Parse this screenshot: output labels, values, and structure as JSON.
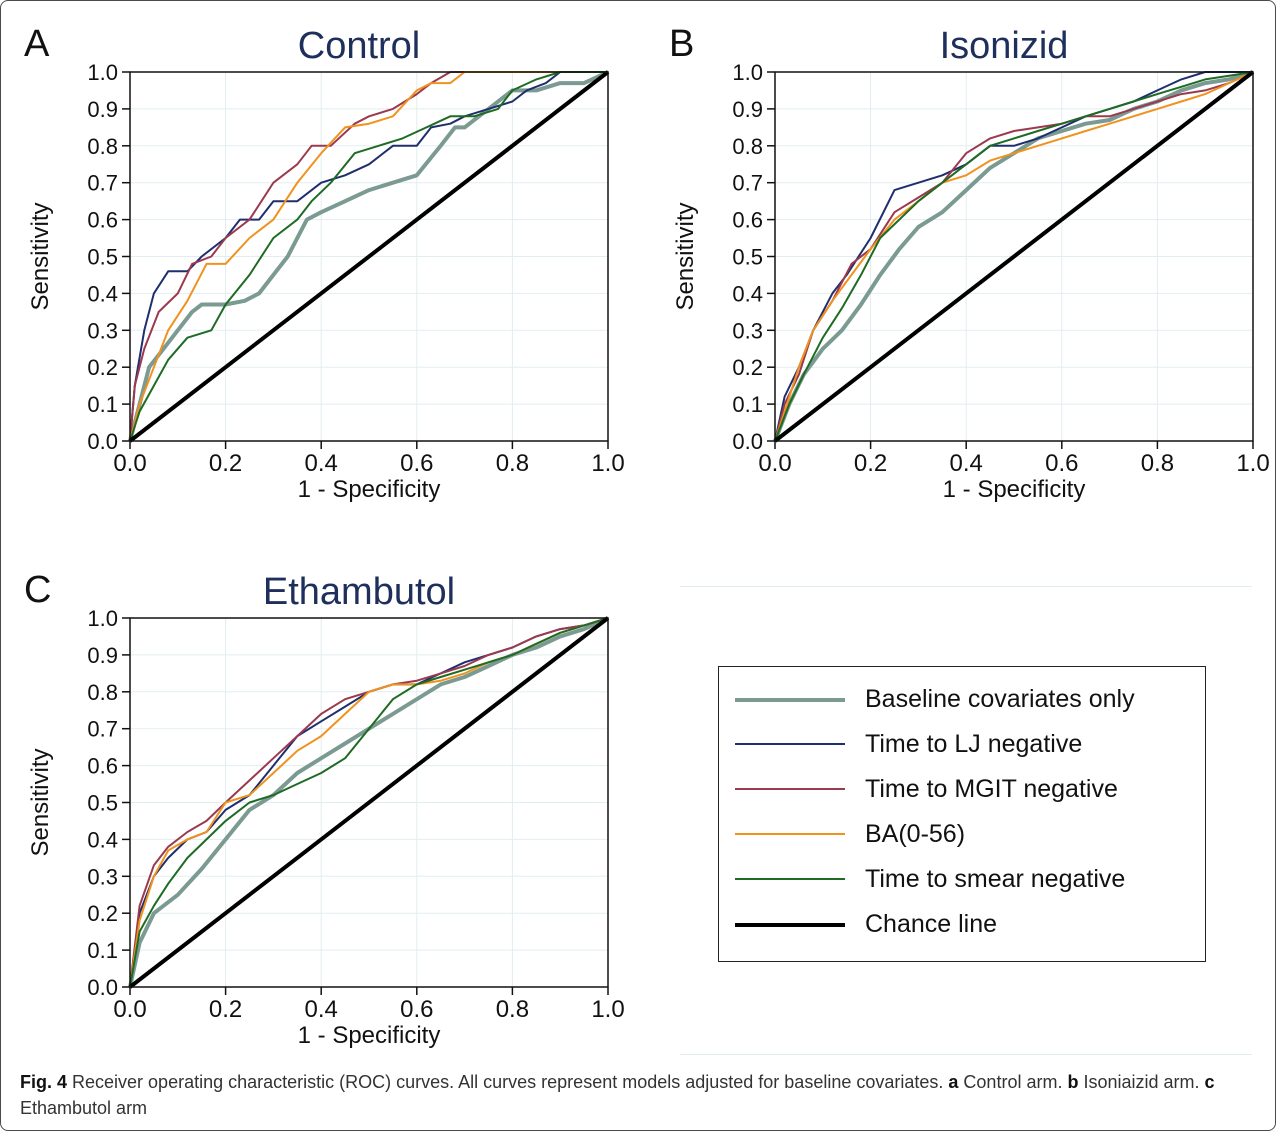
{
  "figure": {
    "caption": {
      "label": "Fig. 4",
      "text_1": " Receiver operating characteristic (ROC) curves. All curves represent models adjusted for baseline covariates. ",
      "a_label": "a",
      "a_text": " Control arm. ",
      "b_label": "b",
      "b_text": " Isoniaizid arm. ",
      "c_label": "c",
      "c_text": " Ethambutol arm"
    }
  },
  "legend": {
    "items": [
      {
        "label": "Baseline covariates only",
        "color": "#7a9a92",
        "width": 4
      },
      {
        "label": "Time to LJ negative",
        "color": "#1f2f6e",
        "width": 2
      },
      {
        "label": "Time to MGIT negative",
        "color": "#9b3a4f",
        "width": 2
      },
      {
        "label": "BA(0-56)",
        "color": "#f0921e",
        "width": 2
      },
      {
        "label": "Time to smear negative",
        "color": "#1e6b23",
        "width": 2
      },
      {
        "label": "Chance line",
        "color": "#000000",
        "width": 4
      }
    ]
  },
  "chart_data": [
    {
      "panel_letter": "A",
      "type": "line",
      "title": "Control",
      "xlabel": "1 - Specificity",
      "ylabel": "Sensitivity",
      "xlim": [
        0,
        1
      ],
      "ylim": [
        0,
        1
      ],
      "xticks": [
        "0.0",
        "0.2",
        "0.4",
        "0.6",
        "0.8",
        "1.0"
      ],
      "yticks": [
        "0.0",
        "0.1",
        "0.2",
        "0.3",
        "0.4",
        "0.5",
        "0.6",
        "0.7",
        "0.8",
        "0.9",
        "1.0"
      ],
      "grid": true,
      "series": [
        {
          "name": "Baseline covariates only",
          "color": "#7a9a92",
          "x": [
            0,
            0.02,
            0.04,
            0.07,
            0.1,
            0.13,
            0.15,
            0.2,
            0.24,
            0.27,
            0.3,
            0.33,
            0.35,
            0.37,
            0.4,
            0.45,
            0.5,
            0.55,
            0.6,
            0.65,
            0.68,
            0.7,
            0.75,
            0.8,
            0.85,
            0.9,
            0.95,
            1
          ],
          "y": [
            0,
            0.1,
            0.2,
            0.25,
            0.3,
            0.35,
            0.37,
            0.37,
            0.38,
            0.4,
            0.45,
            0.5,
            0.55,
            0.6,
            0.62,
            0.65,
            0.68,
            0.7,
            0.72,
            0.8,
            0.85,
            0.85,
            0.9,
            0.95,
            0.95,
            0.97,
            0.97,
            1
          ]
        },
        {
          "name": "Time to LJ negative",
          "color": "#1f2f6e",
          "x": [
            0,
            0.01,
            0.03,
            0.05,
            0.08,
            0.12,
            0.15,
            0.2,
            0.23,
            0.27,
            0.3,
            0.35,
            0.4,
            0.45,
            0.5,
            0.55,
            0.6,
            0.63,
            0.67,
            0.7,
            0.75,
            0.8,
            0.83,
            0.87,
            0.9,
            0.95,
            1
          ],
          "y": [
            0,
            0.15,
            0.3,
            0.4,
            0.46,
            0.46,
            0.5,
            0.55,
            0.6,
            0.6,
            0.65,
            0.65,
            0.7,
            0.72,
            0.75,
            0.8,
            0.8,
            0.85,
            0.86,
            0.88,
            0.9,
            0.92,
            0.95,
            0.97,
            1,
            1,
            1
          ]
        },
        {
          "name": "Time to MGIT negative",
          "color": "#9b3a4f",
          "x": [
            0,
            0.01,
            0.03,
            0.06,
            0.1,
            0.13,
            0.17,
            0.2,
            0.25,
            0.3,
            0.35,
            0.38,
            0.42,
            0.47,
            0.5,
            0.55,
            0.6,
            0.63,
            0.67,
            0.7,
            0.75,
            0.8,
            0.85,
            0.9,
            0.95,
            1
          ],
          "y": [
            0,
            0.15,
            0.25,
            0.35,
            0.4,
            0.48,
            0.5,
            0.55,
            0.6,
            0.7,
            0.75,
            0.8,
            0.8,
            0.86,
            0.88,
            0.9,
            0.94,
            0.97,
            1,
            1,
            1,
            1,
            1,
            1,
            1,
            1
          ]
        },
        {
          "name": "BA(0-56)",
          "color": "#f0921e",
          "x": [
            0,
            0.02,
            0.05,
            0.08,
            0.12,
            0.16,
            0.2,
            0.25,
            0.3,
            0.35,
            0.4,
            0.45,
            0.5,
            0.55,
            0.6,
            0.63,
            0.67,
            0.7,
            0.75,
            0.8,
            0.85,
            0.9,
            0.95,
            1
          ],
          "y": [
            0,
            0.1,
            0.2,
            0.3,
            0.38,
            0.48,
            0.48,
            0.55,
            0.6,
            0.7,
            0.78,
            0.85,
            0.86,
            0.88,
            0.95,
            0.97,
            0.97,
            1,
            1,
            1,
            1,
            1,
            1,
            1
          ]
        },
        {
          "name": "Time to smear negative",
          "color": "#1e6b23",
          "x": [
            0,
            0.02,
            0.05,
            0.08,
            0.12,
            0.17,
            0.2,
            0.25,
            0.3,
            0.35,
            0.38,
            0.42,
            0.47,
            0.52,
            0.57,
            0.62,
            0.67,
            0.72,
            0.77,
            0.8,
            0.85,
            0.9,
            0.95,
            1
          ],
          "y": [
            0,
            0.08,
            0.15,
            0.22,
            0.28,
            0.3,
            0.37,
            0.45,
            0.55,
            0.6,
            0.65,
            0.7,
            0.78,
            0.8,
            0.82,
            0.85,
            0.88,
            0.88,
            0.9,
            0.95,
            0.98,
            1,
            1,
            1
          ]
        },
        {
          "name": "Chance line",
          "color": "#000000",
          "x": [
            0,
            1
          ],
          "y": [
            0,
            1
          ]
        }
      ]
    },
    {
      "panel_letter": "B",
      "type": "line",
      "title": "Isonizid",
      "xlabel": "1 - Specificity",
      "ylabel": "Sensitivity",
      "xlim": [
        0,
        1
      ],
      "ylim": [
        0,
        1
      ],
      "xticks": [
        "0.0",
        "0.2",
        "0.4",
        "0.6",
        "0.8",
        "1.0"
      ],
      "yticks": [
        "0.0",
        "0.1",
        "0.2",
        "0.3",
        "0.4",
        "0.5",
        "0.6",
        "0.7",
        "0.8",
        "0.9",
        "1.0"
      ],
      "grid": true,
      "series": [
        {
          "name": "Baseline covariates only",
          "color": "#7a9a92",
          "x": [
            0,
            0.03,
            0.06,
            0.1,
            0.14,
            0.18,
            0.22,
            0.26,
            0.3,
            0.35,
            0.4,
            0.45,
            0.5,
            0.55,
            0.6,
            0.65,
            0.7,
            0.75,
            0.8,
            0.85,
            0.9,
            0.95,
            1
          ],
          "y": [
            0,
            0.1,
            0.18,
            0.25,
            0.3,
            0.37,
            0.45,
            0.52,
            0.58,
            0.62,
            0.68,
            0.74,
            0.78,
            0.82,
            0.84,
            0.86,
            0.87,
            0.9,
            0.92,
            0.95,
            0.97,
            0.98,
            1
          ]
        },
        {
          "name": "Time to LJ negative",
          "color": "#1f2f6e",
          "x": [
            0,
            0.02,
            0.05,
            0.08,
            0.12,
            0.15,
            0.2,
            0.25,
            0.3,
            0.35,
            0.4,
            0.45,
            0.5,
            0.55,
            0.6,
            0.65,
            0.7,
            0.75,
            0.8,
            0.85,
            0.9,
            0.95,
            1
          ],
          "y": [
            0,
            0.12,
            0.2,
            0.3,
            0.4,
            0.45,
            0.55,
            0.68,
            0.7,
            0.72,
            0.75,
            0.8,
            0.8,
            0.82,
            0.85,
            0.88,
            0.9,
            0.92,
            0.95,
            0.98,
            1,
            1,
            1
          ]
        },
        {
          "name": "Time to MGIT negative",
          "color": "#9b3a4f",
          "x": [
            0,
            0.02,
            0.05,
            0.08,
            0.12,
            0.16,
            0.2,
            0.25,
            0.3,
            0.35,
            0.4,
            0.45,
            0.5,
            0.55,
            0.6,
            0.65,
            0.7,
            0.75,
            0.8,
            0.85,
            0.9,
            0.95,
            1
          ],
          "y": [
            0,
            0.1,
            0.18,
            0.3,
            0.38,
            0.48,
            0.52,
            0.62,
            0.66,
            0.7,
            0.78,
            0.82,
            0.84,
            0.85,
            0.86,
            0.88,
            0.88,
            0.9,
            0.92,
            0.94,
            0.95,
            0.97,
            1
          ]
        },
        {
          "name": "BA(0-56)",
          "color": "#f0921e",
          "x": [
            0,
            0.02,
            0.05,
            0.08,
            0.12,
            0.16,
            0.2,
            0.25,
            0.3,
            0.35,
            0.4,
            0.45,
            0.5,
            0.55,
            0.6,
            0.65,
            0.7,
            0.75,
            0.8,
            0.85,
            0.9,
            0.95,
            1
          ],
          "y": [
            0,
            0.08,
            0.2,
            0.3,
            0.38,
            0.45,
            0.52,
            0.6,
            0.65,
            0.7,
            0.72,
            0.76,
            0.78,
            0.8,
            0.82,
            0.84,
            0.86,
            0.88,
            0.9,
            0.92,
            0.94,
            0.97,
            1
          ]
        },
        {
          "name": "Time to smear negative",
          "color": "#1e6b23",
          "x": [
            0,
            0.03,
            0.06,
            0.1,
            0.14,
            0.18,
            0.22,
            0.26,
            0.3,
            0.35,
            0.4,
            0.45,
            0.5,
            0.55,
            0.6,
            0.65,
            0.7,
            0.75,
            0.8,
            0.85,
            0.9,
            0.95,
            1
          ],
          "y": [
            0,
            0.1,
            0.18,
            0.28,
            0.36,
            0.45,
            0.55,
            0.6,
            0.65,
            0.7,
            0.75,
            0.8,
            0.82,
            0.84,
            0.86,
            0.88,
            0.9,
            0.92,
            0.94,
            0.96,
            0.98,
            0.99,
            1
          ]
        },
        {
          "name": "Chance line",
          "color": "#000000",
          "x": [
            0,
            1
          ],
          "y": [
            0,
            1
          ]
        }
      ]
    },
    {
      "panel_letter": "C",
      "type": "line",
      "title": "Ethambutol",
      "xlabel": "1 - Specificity",
      "ylabel": "Sensitivity",
      "xlim": [
        0,
        1
      ],
      "ylim": [
        0,
        1
      ],
      "xticks": [
        "0.0",
        "0.2",
        "0.4",
        "0.6",
        "0.8",
        "1.0"
      ],
      "yticks": [
        "0.0",
        "0.1",
        "0.2",
        "0.3",
        "0.4",
        "0.5",
        "0.6",
        "0.7",
        "0.8",
        "0.9",
        "1.0"
      ],
      "grid": true,
      "series": [
        {
          "name": "Baseline covariates only",
          "color": "#7a9a92",
          "x": [
            0,
            0.02,
            0.05,
            0.1,
            0.15,
            0.2,
            0.25,
            0.3,
            0.35,
            0.4,
            0.45,
            0.5,
            0.55,
            0.6,
            0.65,
            0.7,
            0.75,
            0.8,
            0.85,
            0.9,
            0.95,
            1
          ],
          "y": [
            0,
            0.12,
            0.2,
            0.25,
            0.32,
            0.4,
            0.48,
            0.52,
            0.58,
            0.62,
            0.66,
            0.7,
            0.74,
            0.78,
            0.82,
            0.84,
            0.87,
            0.9,
            0.92,
            0.95,
            0.97,
            1
          ]
        },
        {
          "name": "Time to LJ negative",
          "color": "#1f2f6e",
          "x": [
            0,
            0.02,
            0.05,
            0.08,
            0.12,
            0.16,
            0.2,
            0.25,
            0.3,
            0.35,
            0.4,
            0.45,
            0.5,
            0.55,
            0.6,
            0.65,
            0.7,
            0.75,
            0.8,
            0.85,
            0.9,
            0.95,
            1
          ],
          "y": [
            0,
            0.2,
            0.3,
            0.35,
            0.4,
            0.42,
            0.48,
            0.52,
            0.6,
            0.68,
            0.72,
            0.76,
            0.8,
            0.82,
            0.82,
            0.85,
            0.88,
            0.9,
            0.92,
            0.95,
            0.97,
            0.98,
            1
          ]
        },
        {
          "name": "Time to MGIT negative",
          "color": "#9b3a4f",
          "x": [
            0,
            0.02,
            0.05,
            0.08,
            0.12,
            0.16,
            0.2,
            0.25,
            0.3,
            0.35,
            0.4,
            0.45,
            0.5,
            0.55,
            0.6,
            0.65,
            0.7,
            0.75,
            0.8,
            0.85,
            0.9,
            0.95,
            1
          ],
          "y": [
            0,
            0.22,
            0.33,
            0.38,
            0.42,
            0.45,
            0.5,
            0.56,
            0.62,
            0.68,
            0.74,
            0.78,
            0.8,
            0.82,
            0.83,
            0.85,
            0.87,
            0.9,
            0.92,
            0.95,
            0.97,
            0.98,
            1
          ]
        },
        {
          "name": "BA(0-56)",
          "color": "#f0921e",
          "x": [
            0,
            0.02,
            0.05,
            0.08,
            0.12,
            0.16,
            0.2,
            0.25,
            0.3,
            0.35,
            0.4,
            0.45,
            0.5,
            0.55,
            0.6,
            0.65,
            0.7,
            0.75,
            0.8,
            0.85,
            0.9,
            0.95,
            1
          ],
          "y": [
            0,
            0.18,
            0.3,
            0.37,
            0.4,
            0.42,
            0.5,
            0.52,
            0.58,
            0.64,
            0.68,
            0.74,
            0.8,
            0.82,
            0.82,
            0.83,
            0.85,
            0.88,
            0.9,
            0.93,
            0.96,
            0.98,
            1
          ]
        },
        {
          "name": "Time to smear negative",
          "color": "#1e6b23",
          "x": [
            0,
            0.02,
            0.05,
            0.08,
            0.12,
            0.16,
            0.2,
            0.25,
            0.3,
            0.35,
            0.4,
            0.45,
            0.5,
            0.55,
            0.6,
            0.65,
            0.7,
            0.75,
            0.8,
            0.85,
            0.9,
            0.95,
            1
          ],
          "y": [
            0,
            0.15,
            0.22,
            0.28,
            0.35,
            0.4,
            0.45,
            0.5,
            0.52,
            0.55,
            0.58,
            0.62,
            0.7,
            0.78,
            0.82,
            0.84,
            0.86,
            0.88,
            0.9,
            0.93,
            0.96,
            0.98,
            1
          ]
        },
        {
          "name": "Chance line",
          "color": "#000000",
          "x": [
            0,
            1
          ],
          "y": [
            0,
            1
          ]
        }
      ]
    }
  ]
}
